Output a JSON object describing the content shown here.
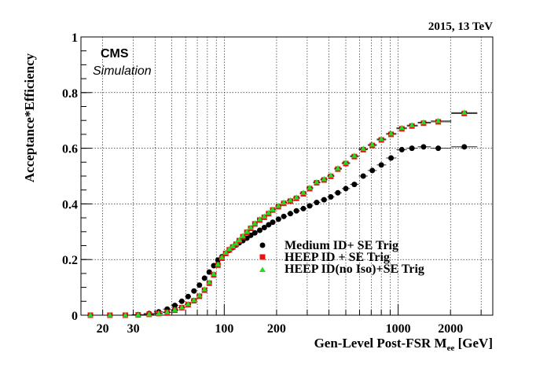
{
  "header": {
    "energy_label": "2015, 13 TeV"
  },
  "cms": {
    "label": "CMS",
    "sublabel": "Simulation"
  },
  "chart_data": {
    "type": "scatter",
    "xlabel_main": "Gen-Level Post-FSR M",
    "xlabel_sub": "ee",
    "xlabel_unit": " [GeV]",
    "ylabel": "Acceptance*Efficiency",
    "x_scale": "log",
    "xlim": [
      15,
      3500
    ],
    "ylim": [
      0,
      1
    ],
    "grid": true,
    "legend_position": "bottom-right",
    "x_ticks": [
      {
        "value": 20,
        "label": "20"
      },
      {
        "value": 30,
        "label": "30"
      },
      {
        "value": 100,
        "label": "100"
      },
      {
        "value": 200,
        "label": "200"
      },
      {
        "value": 1000,
        "label": "1000"
      },
      {
        "value": 2000,
        "label": "2000"
      }
    ],
    "y_ticks": [
      {
        "value": 0,
        "label": "0"
      },
      {
        "value": 0.2,
        "label": "0.2"
      },
      {
        "value": 0.4,
        "label": "0.4"
      },
      {
        "value": 0.6,
        "label": "0.6"
      },
      {
        "value": 0.8,
        "label": "0.8"
      },
      {
        "value": 1,
        "label": "1"
      }
    ],
    "x": [
      17,
      22,
      27,
      32,
      37,
      42,
      47,
      52,
      57,
      62,
      67,
      72,
      77,
      82,
      87,
      92,
      97,
      102,
      107,
      112,
      117,
      122,
      128,
      135,
      142,
      150,
      160,
      170,
      180,
      190,
      205,
      220,
      240,
      260,
      285,
      310,
      340,
      375,
      410,
      450,
      500,
      560,
      630,
      710,
      800,
      910,
      1050,
      1200,
      1400,
      1700,
      2400
    ],
    "series": [
      {
        "name": "Medium ID+ SE Trig",
        "marker": "circle",
        "color": "#000000",
        "values": [
          0,
          0,
          0,
          0.002,
          0.006,
          0.012,
          0.022,
          0.035,
          0.05,
          0.067,
          0.087,
          0.108,
          0.133,
          0.155,
          0.178,
          0.198,
          0.21,
          0.222,
          0.233,
          0.243,
          0.252,
          0.26,
          0.268,
          0.277,
          0.287,
          0.296,
          0.305,
          0.315,
          0.325,
          0.334,
          0.345,
          0.355,
          0.365,
          0.375,
          0.383,
          0.393,
          0.405,
          0.415,
          0.425,
          0.44,
          0.455,
          0.47,
          0.5,
          0.52,
          0.54,
          0.565,
          0.595,
          0.6,
          0.605,
          0.6,
          0.605
        ]
      },
      {
        "name": "HEEP ID + SE Trig",
        "marker": "square",
        "color": "#ee1111",
        "values": [
          0,
          0,
          0,
          0.001,
          0.003,
          0.006,
          0.01,
          0.018,
          0.027,
          0.038,
          0.052,
          0.068,
          0.09,
          0.115,
          0.145,
          0.18,
          0.205,
          0.222,
          0.235,
          0.245,
          0.255,
          0.268,
          0.282,
          0.298,
          0.312,
          0.328,
          0.342,
          0.352,
          0.365,
          0.378,
          0.39,
          0.402,
          0.41,
          0.42,
          0.436,
          0.455,
          0.476,
          0.486,
          0.499,
          0.525,
          0.545,
          0.57,
          0.595,
          0.61,
          0.63,
          0.65,
          0.67,
          0.68,
          0.69,
          0.695,
          0.725
        ]
      },
      {
        "name": "HEEP ID(no Iso)+SE Trig",
        "marker": "triangle",
        "color": "#22dd22",
        "values": [
          0,
          0,
          0,
          0.001,
          0.003,
          0.006,
          0.011,
          0.019,
          0.028,
          0.04,
          0.054,
          0.071,
          0.093,
          0.118,
          0.148,
          0.183,
          0.208,
          0.225,
          0.238,
          0.248,
          0.258,
          0.27,
          0.285,
          0.3,
          0.315,
          0.33,
          0.345,
          0.355,
          0.368,
          0.38,
          0.393,
          0.405,
          0.413,
          0.423,
          0.44,
          0.458,
          0.478,
          0.489,
          0.502,
          0.528,
          0.548,
          0.573,
          0.598,
          0.613,
          0.633,
          0.653,
          0.673,
          0.683,
          0.693,
          0.698,
          0.728
        ]
      }
    ]
  }
}
